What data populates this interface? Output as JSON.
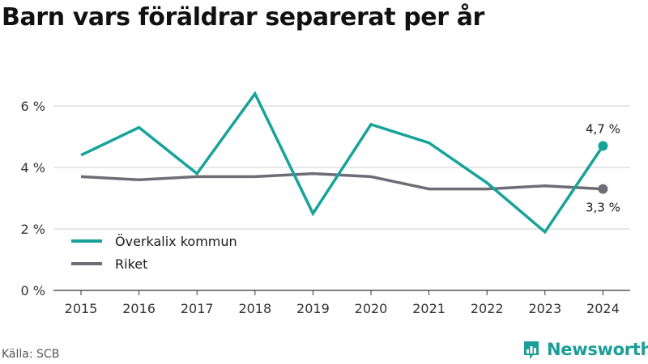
{
  "title": "Barn vars föräldrar separerat per år",
  "source": "Källa: SCB",
  "brand": {
    "name": "Newsworthy",
    "icon": "newsworthy-logo-icon"
  },
  "colors": {
    "teal": "#17a39a",
    "gray": "#6e6c75",
    "grid": "#cfcfcf",
    "axis": "#333333"
  },
  "chart_data": {
    "type": "line",
    "x": [
      "2015",
      "2016",
      "2017",
      "2018",
      "2019",
      "2020",
      "2021",
      "2022",
      "2023",
      "2024"
    ],
    "ylim": [
      0,
      7
    ],
    "yticks": [
      0,
      2,
      4,
      6
    ],
    "ytick_labels": [
      "0 %",
      "2 %",
      "4 %",
      "6 %"
    ],
    "grid": true,
    "legend_position": "bottom-left",
    "series": [
      {
        "name": "Överkalix kommun",
        "color": "#17a39a",
        "values": [
          4.4,
          5.3,
          3.8,
          6.4,
          2.5,
          5.4,
          4.8,
          3.5,
          1.9,
          4.7
        ],
        "end_label": "4,7 %",
        "end_label_position": "above"
      },
      {
        "name": "Riket",
        "color": "#6e6c75",
        "values": [
          3.7,
          3.6,
          3.7,
          3.7,
          3.8,
          3.7,
          3.3,
          3.3,
          3.4,
          3.3
        ],
        "end_label": "3,3 %",
        "end_label_position": "below"
      }
    ]
  }
}
